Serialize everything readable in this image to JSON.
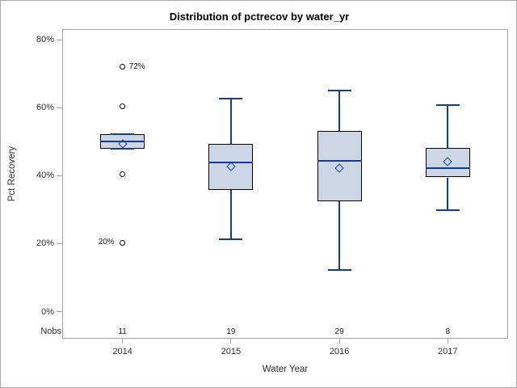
{
  "chart_data": {
    "type": "boxplot",
    "title": "Distribution of pctrecov by water_yr",
    "xlabel": "Water Year",
    "ylabel": "Pct Recovery",
    "nobs_label": "Nobs",
    "ylim": [
      0,
      80
    ],
    "grid": false,
    "y_ticks": {
      "values": [
        0,
        20,
        40,
        60,
        80
      ],
      "labels": [
        "0%",
        "20%",
        "40%",
        "60%",
        "80%"
      ]
    },
    "categories": [
      "2014",
      "2015",
      "2016",
      "2017"
    ],
    "nobs": [
      11,
      19,
      29,
      8
    ],
    "series": [
      {
        "category": "2014",
        "n": 11,
        "whisker_low": 47.9,
        "q1": 47.9,
        "median": 50.0,
        "mean": 49.4,
        "q3": 52.2,
        "whisker_high": 52.2,
        "outliers": [
          {
            "value": 72.0,
            "label": "72%",
            "label_side": "right"
          },
          {
            "value": 60.4
          },
          {
            "value": 40.5
          },
          {
            "value": 20.3,
            "label": "20%",
            "label_side": "left"
          }
        ]
      },
      {
        "category": "2015",
        "n": 19,
        "whisker_low": 21.3,
        "q1": 35.7,
        "median": 44.0,
        "mean": 42.7,
        "q3": 49.4,
        "whisker_high": 62.8,
        "outliers": []
      },
      {
        "category": "2016",
        "n": 29,
        "whisker_low": 12.3,
        "q1": 32.4,
        "median": 44.4,
        "mean": 42.2,
        "q3": 53.2,
        "whisker_high": 65.1,
        "outliers": []
      },
      {
        "category": "2017",
        "n": 8,
        "whisker_low": 29.8,
        "q1": 39.5,
        "median": 42.2,
        "mean": 44.1,
        "q3": 48.3,
        "whisker_high": 60.8,
        "outliers": []
      }
    ]
  },
  "colors": {
    "box_fill": "#ccd5e3",
    "box_border": "#000000",
    "line": "#143c96",
    "frame": "#a6a6a6",
    "text": "#2e2e2e",
    "outlier_stroke": "#000000"
  }
}
